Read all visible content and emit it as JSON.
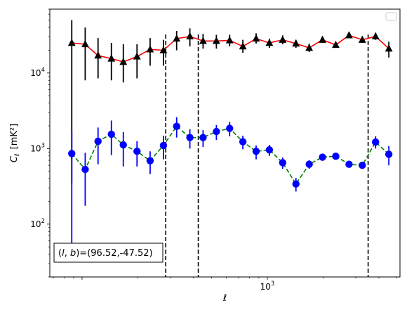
{
  "chart_data": {
    "type": "line",
    "title": "",
    "xlabel": "ℓ",
    "ylabel_main": "C",
    "ylabel_sub": "ℓ",
    "ylabel_unit": "[mK²]",
    "xscale": "log",
    "yscale": "log",
    "xlim": [
      67,
      5200
    ],
    "ylim": [
      20,
      70000
    ],
    "x_tick_labels": [
      {
        "value": 1000,
        "base": "10",
        "exp": "3"
      }
    ],
    "y_tick_labels": [
      {
        "value": 100,
        "base": "10",
        "exp": "2"
      },
      {
        "value": 1000,
        "base": "10",
        "exp": "3"
      },
      {
        "value": 10000,
        "base": "10",
        "exp": "4"
      }
    ],
    "grid": false,
    "legend": "top-right",
    "legend_entries": [],
    "vlines": [
      283,
      424,
      3500
    ],
    "annotation": "(l, b)=(96.52,-47.52)",
    "annotation_prefix": "(",
    "annotation_l": "l",
    "annotation_sep": ", ",
    "annotation_b": "b",
    "annotation_suffix": ")=(96.52,-47.52)",
    "series": [
      {
        "marker": "triangle",
        "marker_color": "#000000",
        "line_color": "#ff0000",
        "line_style": "solid",
        "points": [
          {
            "x": 88,
            "y": 25000,
            "lo": 350,
            "hi": 50000
          },
          {
            "x": 104,
            "y": 24000,
            "lo": 8000,
            "hi": 40000
          },
          {
            "x": 122,
            "y": 17000,
            "lo": 8500,
            "hi": 29000
          },
          {
            "x": 144,
            "y": 15500,
            "lo": 8000,
            "hi": 25000
          },
          {
            "x": 167,
            "y": 14000,
            "lo": 7500,
            "hi": 24000
          },
          {
            "x": 198,
            "y": 16500,
            "lo": 8500,
            "hi": 24000
          },
          {
            "x": 233,
            "y": 20500,
            "lo": 12500,
            "hi": 29000
          },
          {
            "x": 275,
            "y": 20000,
            "lo": 12500,
            "hi": 27500
          },
          {
            "x": 324,
            "y": 28500,
            "lo": 20000,
            "hi": 36000
          },
          {
            "x": 382,
            "y": 30500,
            "lo": 22500,
            "hi": 39000
          },
          {
            "x": 450,
            "y": 26500,
            "lo": 21000,
            "hi": 33000
          },
          {
            "x": 531,
            "y": 26500,
            "lo": 21000,
            "hi": 32000
          },
          {
            "x": 626,
            "y": 27000,
            "lo": 22500,
            "hi": 32000
          },
          {
            "x": 738,
            "y": 22500,
            "lo": 18500,
            "hi": 27500
          },
          {
            "x": 870,
            "y": 28500,
            "lo": 24500,
            "hi": 33500
          },
          {
            "x": 1026,
            "y": 25000,
            "lo": 21500,
            "hi": 28500
          },
          {
            "x": 1210,
            "y": 27500,
            "lo": 24000,
            "hi": 31500
          },
          {
            "x": 1427,
            "y": 24500,
            "lo": 21500,
            "hi": 27500
          },
          {
            "x": 1683,
            "y": 21500,
            "lo": 19000,
            "hi": 24500
          },
          {
            "x": 1985,
            "y": 27500,
            "lo": 25000,
            "hi": 30500
          },
          {
            "x": 2341,
            "y": 23500,
            "lo": 21500,
            "hi": 25500
          },
          {
            "x": 2761,
            "y": 31500,
            "lo": 29000,
            "hi": 34500
          },
          {
            "x": 3256,
            "y": 27500,
            "lo": 25000,
            "hi": 30500
          },
          {
            "x": 3840,
            "y": 30500,
            "lo": 27500,
            "hi": 34000
          },
          {
            "x": 4528,
            "y": 21000,
            "lo": 16000,
            "hi": 26000
          }
        ]
      },
      {
        "marker": "circle",
        "marker_color": "#0000ff",
        "line_color": "#008000",
        "line_style": "dashed",
        "points": [
          {
            "x": 88,
            "y": 860,
            "lo": 35,
            "hi": 1680
          },
          {
            "x": 104,
            "y": 530,
            "lo": 175,
            "hi": 880
          },
          {
            "x": 122,
            "y": 1250,
            "lo": 620,
            "hi": 1900
          },
          {
            "x": 144,
            "y": 1550,
            "lo": 820,
            "hi": 2350
          },
          {
            "x": 167,
            "y": 1120,
            "lo": 580,
            "hi": 1650
          },
          {
            "x": 198,
            "y": 920,
            "lo": 580,
            "hi": 1250
          },
          {
            "x": 233,
            "y": 690,
            "lo": 460,
            "hi": 920
          },
          {
            "x": 275,
            "y": 1100,
            "lo": 720,
            "hi": 1480
          },
          {
            "x": 324,
            "y": 1970,
            "lo": 1400,
            "hi": 2600
          },
          {
            "x": 382,
            "y": 1400,
            "lo": 1000,
            "hi": 1800
          },
          {
            "x": 450,
            "y": 1400,
            "lo": 1050,
            "hi": 1750
          },
          {
            "x": 531,
            "y": 1680,
            "lo": 1300,
            "hi": 2050
          },
          {
            "x": 626,
            "y": 1850,
            "lo": 1450,
            "hi": 2250
          },
          {
            "x": 738,
            "y": 1230,
            "lo": 980,
            "hi": 1480
          },
          {
            "x": 870,
            "y": 920,
            "lo": 720,
            "hi": 1100
          },
          {
            "x": 1026,
            "y": 960,
            "lo": 800,
            "hi": 1120
          },
          {
            "x": 1210,
            "y": 650,
            "lo": 540,
            "hi": 760
          },
          {
            "x": 1427,
            "y": 340,
            "lo": 270,
            "hi": 410
          },
          {
            "x": 1683,
            "y": 620,
            "lo": 540,
            "hi": 700
          },
          {
            "x": 1985,
            "y": 770,
            "lo": 690,
            "hi": 850
          },
          {
            "x": 2341,
            "y": 790,
            "lo": 720,
            "hi": 860
          },
          {
            "x": 2761,
            "y": 620,
            "lo": 570,
            "hi": 680
          },
          {
            "x": 3256,
            "y": 600,
            "lo": 550,
            "hi": 660
          },
          {
            "x": 3840,
            "y": 1220,
            "lo": 1000,
            "hi": 1450
          },
          {
            "x": 4528,
            "y": 840,
            "lo": 600,
            "hi": 1080
          }
        ]
      }
    ]
  }
}
